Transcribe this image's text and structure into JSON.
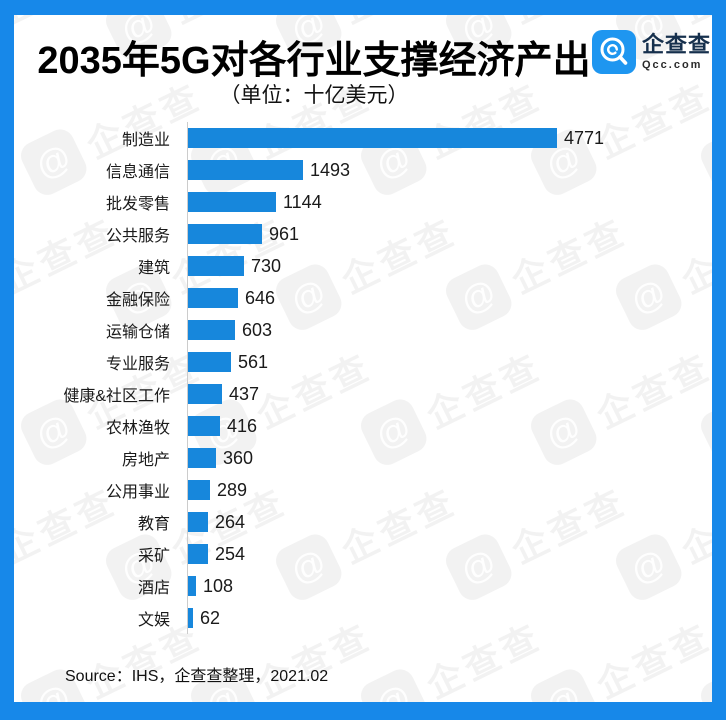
{
  "page": {
    "frame_color": "#1788E9",
    "background": "#FFFFFF"
  },
  "header": {
    "title": "2035年5G对各行业支撑经济产出",
    "subtitle": "（单位：十亿美元）"
  },
  "logo": {
    "name": "企查查",
    "domain": "Qcc.com",
    "icon": "qcc-magnifier-logo",
    "icon_color": "#1E96F0",
    "name_color": "#16304D"
  },
  "chart_data": {
    "type": "bar",
    "orientation": "horizontal",
    "title": "2035年5G对各行业支撑经济产出",
    "unit": "（单位：十亿美元）",
    "categories": [
      "制造业",
      "信息通信",
      "批发零售",
      "公共服务",
      "建筑",
      "金融保险",
      "运输仓储",
      "专业服务",
      "健康&社区工作",
      "农林渔牧",
      "房地产",
      "公用事业",
      "教育",
      "采矿",
      "酒店",
      "文娱"
    ],
    "values": [
      4771,
      1493,
      1144,
      961,
      730,
      646,
      603,
      561,
      437,
      416,
      360,
      289,
      264,
      254,
      108,
      62
    ],
    "bar_color": "#1787DC",
    "axis_line_color": "#CCCCCC",
    "xlim": [
      0,
      4800
    ],
    "grid": "off",
    "legend": "none",
    "value_labels": "right of each bar"
  },
  "footer": {
    "source": "Source：IHS，企查查整理，2021.02"
  },
  "watermark": {
    "text": "企查查",
    "icon": "qcc-logo-watermark-icon"
  }
}
